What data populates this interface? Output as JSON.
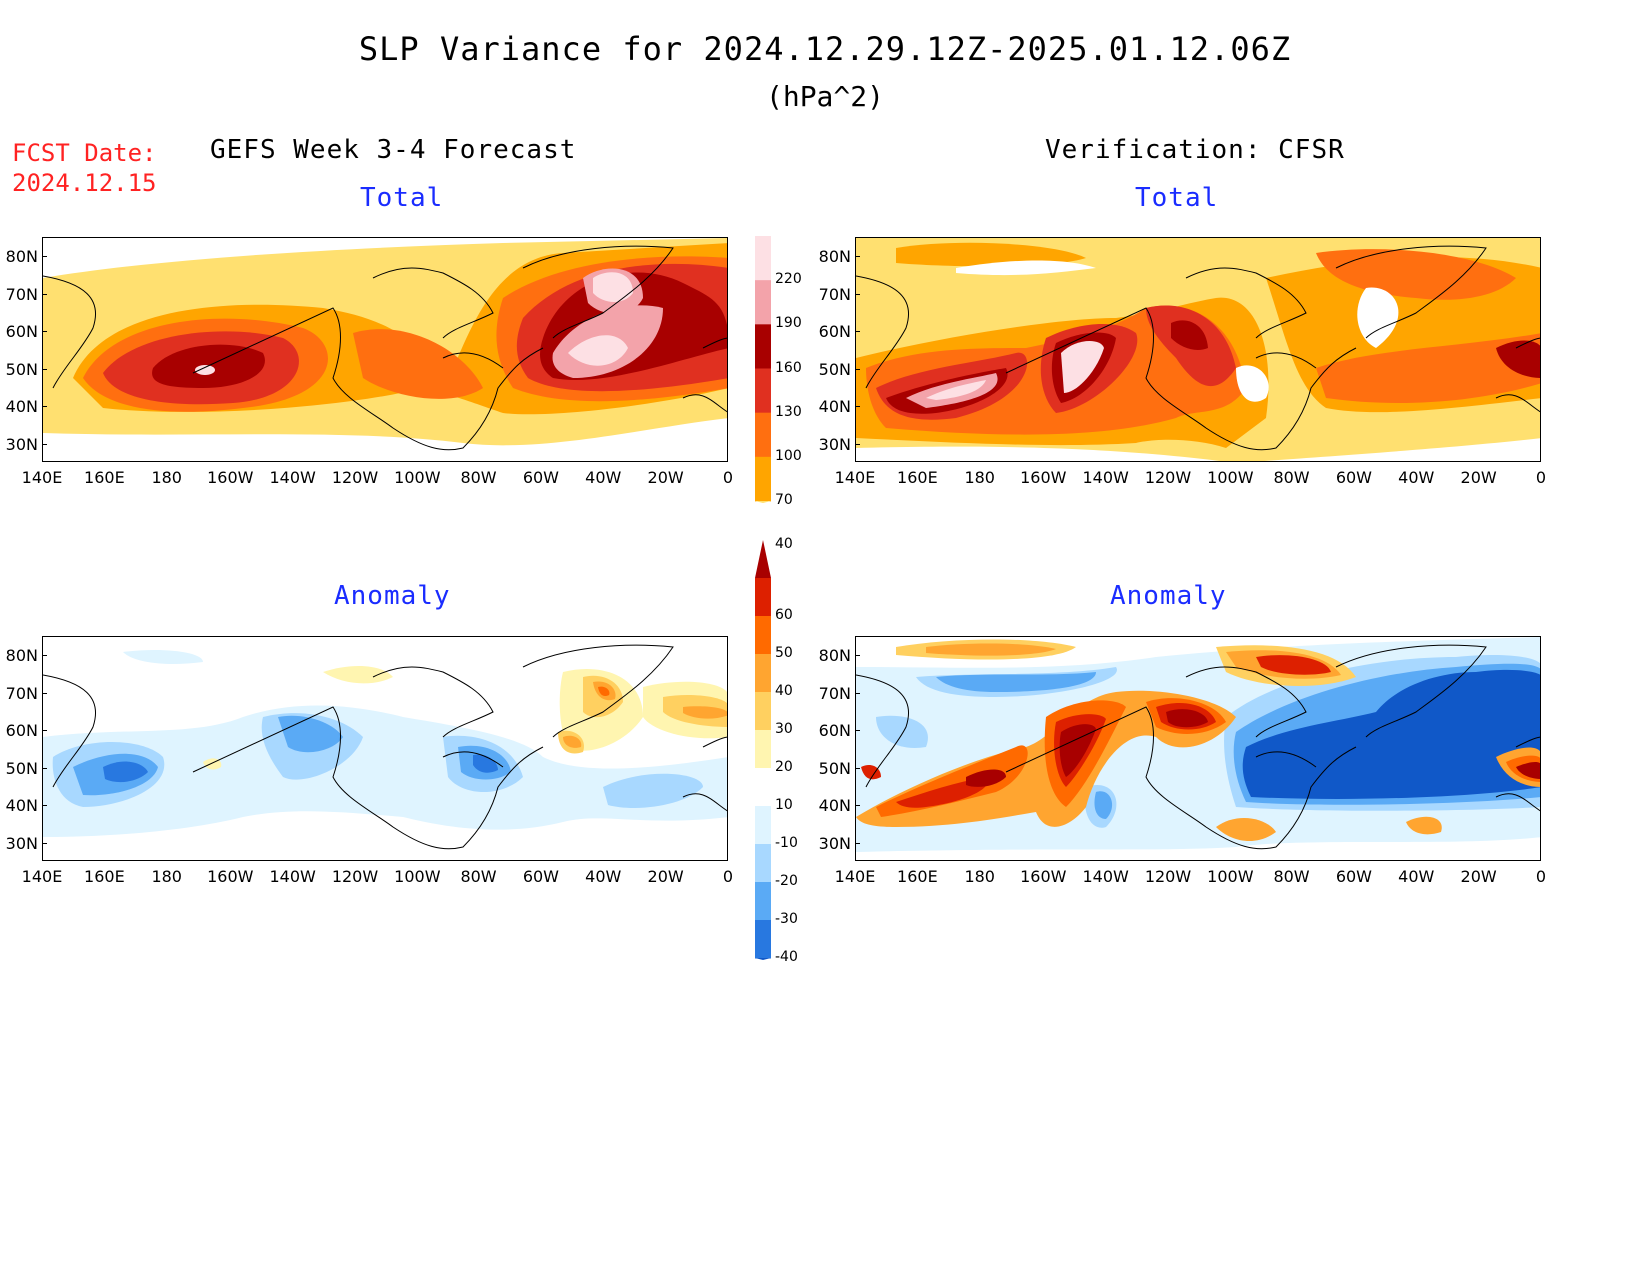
{
  "header": {
    "title": "SLP Variance for 2024.12.29.12Z-2025.01.12.06Z",
    "units": "(hPa^2)",
    "fcst_label": "FCST Date:",
    "fcst_date": "2024.12.15"
  },
  "columns": {
    "left": "GEFS Week 3-4 Forecast",
    "right": "Verification: CFSR"
  },
  "panels": {
    "top_left": "Total",
    "top_right": "Total",
    "bottom_left": "Anomaly",
    "bottom_right": "Anomaly"
  },
  "axes": {
    "lat_ticks": [
      "80N",
      "70N",
      "60N",
      "50N",
      "40N",
      "30N"
    ],
    "lon_ticks": [
      "140E",
      "160E",
      "180",
      "160W",
      "140W",
      "120W",
      "100W",
      "80W",
      "60W",
      "40W",
      "20W",
      "0"
    ]
  },
  "colorbars": {
    "total": {
      "levels": [
        "220",
        "190",
        "160",
        "130",
        "100",
        "70",
        "40"
      ],
      "colors": [
        "#fde0e4",
        "#f3a3aa",
        "#a80000",
        "#e03020",
        "#ff6f10",
        "#ffa500",
        "#ffe070"
      ]
    },
    "anomaly": {
      "levels": [
        "60",
        "50",
        "40",
        "30",
        "20",
        "10",
        "-10",
        "-20",
        "-30",
        "-40"
      ],
      "colors": [
        "#a80000",
        "#dd2000",
        "#ff6a00",
        "#ffa530",
        "#ffd060",
        "#fff5b0",
        "#ffffff",
        "#dff4ff",
        "#a8d8ff",
        "#5aaaf5",
        "#2878e0",
        "#1058c8"
      ]
    }
  }
}
